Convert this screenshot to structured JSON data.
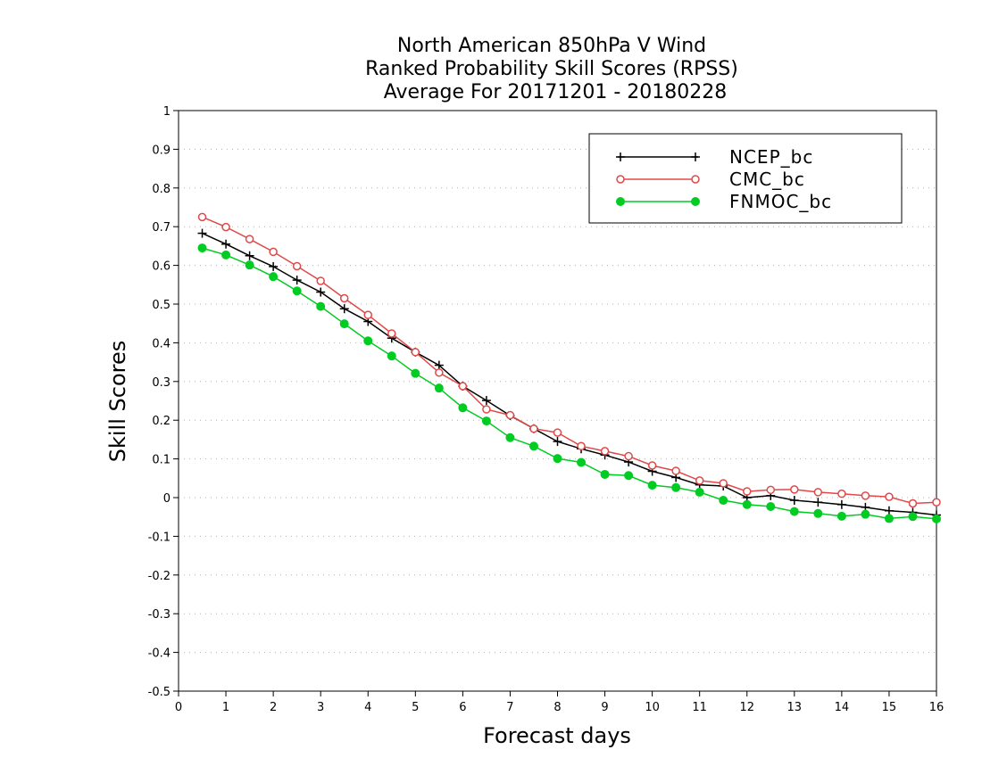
{
  "chart_data": {
    "type": "line",
    "title": [
      "North American 850hPa V Wind",
      "Ranked Probability Skill Scores (RPSS)",
      "Average For 20171201 - 20180228"
    ],
    "xlabel": "Forecast days",
    "ylabel": "Skill Scores",
    "xlim": [
      0,
      16
    ],
    "ylim": [
      -0.5,
      1
    ],
    "xticks": [
      "0",
      "1",
      "2",
      "3",
      "4",
      "5",
      "6",
      "7",
      "8",
      "9",
      "10",
      "11",
      "12",
      "13",
      "14",
      "15",
      "16"
    ],
    "yticks": [
      "1",
      "0.9",
      "0.8",
      "0.7",
      "0.6",
      "0.5",
      "0.4",
      "0.3",
      "0.2",
      "0.1",
      "0",
      "-0.1",
      "-0.2",
      "-0.3",
      "-0.4",
      "-0.5"
    ],
    "grid": true,
    "legend_position": "top-right",
    "x": [
      0.5,
      1,
      1.5,
      2,
      2.5,
      3,
      3.5,
      4,
      4.5,
      5,
      5.5,
      6,
      6.5,
      7,
      7.5,
      8,
      8.5,
      9,
      9.5,
      10,
      10.5,
      11,
      11.5,
      12,
      12.5,
      13,
      13.5,
      14,
      14.5,
      15,
      15.5,
      16
    ],
    "series": [
      {
        "name": "NCEP_bc",
        "color": "#000000",
        "marker": "plus",
        "values": [
          0.683,
          0.655,
          0.625,
          0.597,
          0.562,
          0.531,
          0.488,
          0.455,
          0.412,
          0.376,
          0.342,
          0.288,
          0.251,
          0.212,
          0.178,
          0.145,
          0.126,
          0.11,
          0.092,
          0.068,
          0.052,
          0.033,
          0.03,
          0.0,
          0.005,
          -0.007,
          -0.012,
          -0.018,
          -0.025,
          -0.034,
          -0.038,
          -0.045
        ]
      },
      {
        "name": "CMC_bc",
        "color": "#e04848",
        "marker": "open-circle",
        "values": [
          0.725,
          0.699,
          0.668,
          0.635,
          0.598,
          0.56,
          0.515,
          0.472,
          0.424,
          0.376,
          0.323,
          0.288,
          0.228,
          0.213,
          0.178,
          0.168,
          0.133,
          0.12,
          0.107,
          0.083,
          0.069,
          0.044,
          0.037,
          0.016,
          0.02,
          0.021,
          0.014,
          0.01,
          0.005,
          0.002,
          -0.015,
          -0.012
        ]
      },
      {
        "name": "FNMOC_bc",
        "color": "#00cc22",
        "marker": "filled-circle",
        "values": [
          0.645,
          0.627,
          0.601,
          0.571,
          0.534,
          0.494,
          0.449,
          0.405,
          0.366,
          0.321,
          0.283,
          0.232,
          0.198,
          0.155,
          0.133,
          0.101,
          0.091,
          0.06,
          0.057,
          0.032,
          0.026,
          0.014,
          -0.007,
          -0.018,
          -0.023,
          -0.036,
          -0.041,
          -0.048,
          -0.043,
          -0.054,
          -0.049,
          -0.055
        ]
      }
    ]
  }
}
